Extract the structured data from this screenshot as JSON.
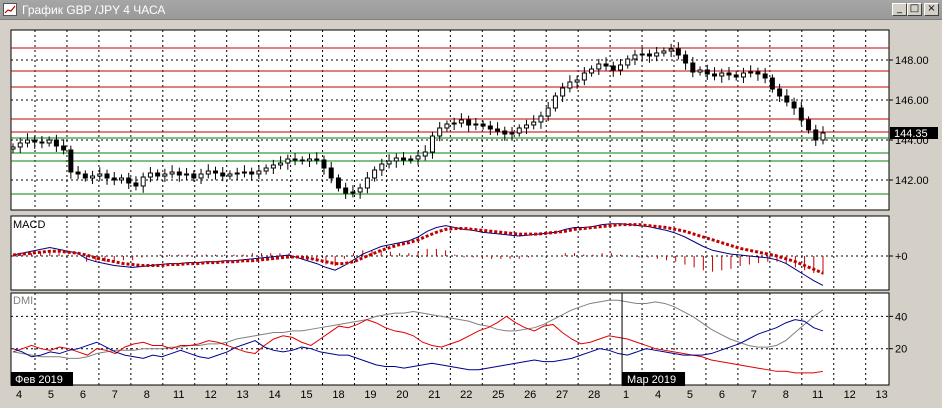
{
  "window": {
    "title": "График GBP /JPY  4 ЧАСА",
    "buttons": [
      {
        "name": "minimize-button",
        "glyph": "_"
      },
      {
        "name": "maximize-button",
        "glyph": "□"
      },
      {
        "name": "close-button",
        "glyph": "×"
      }
    ]
  },
  "chart_data": [
    {
      "type": "candlestick",
      "title": "График GBP /JPY  4 ЧАСА",
      "ylim": [
        140.5,
        149.5
      ],
      "y_ticks": [
        "148.00",
        "146.00",
        "144.00",
        "142.00"
      ],
      "current_price": "144.35",
      "x_labels": [
        "4",
        "5",
        "6",
        "7",
        "8",
        "11",
        "12",
        "13",
        "14",
        "15",
        "18",
        "19",
        "20",
        "21",
        "22",
        "25",
        "26",
        "27",
        "28",
        "1",
        "4",
        "5",
        "6",
        "7",
        "8",
        "11",
        "12",
        "13"
      ],
      "period_labels": [
        "Фев 2019",
        "Мар 2019"
      ],
      "resistance_levels": [
        148.6,
        147.45,
        146.65,
        145.05,
        144.4
      ],
      "support_levels": [
        144.1,
        143.35,
        142.95,
        141.3
      ],
      "closes": [
        143.65,
        143.85,
        144.0,
        143.9,
        143.85,
        144.0,
        143.7,
        143.5,
        142.4,
        142.3,
        142.1,
        142.2,
        142.3,
        142.1,
        142.0,
        142.1,
        141.85,
        141.7,
        142.15,
        142.35,
        142.2,
        142.3,
        142.4,
        142.25,
        142.3,
        142.1,
        142.3,
        142.45,
        142.35,
        142.2,
        142.3,
        142.35,
        142.4,
        142.3,
        142.45,
        142.6,
        142.75,
        142.85,
        143.05,
        143.0,
        142.95,
        143.05,
        143.0,
        142.6,
        142.1,
        141.6,
        141.35,
        141.4,
        141.6,
        142.1,
        142.5,
        142.8,
        142.95,
        143.1,
        143.0,
        143.05,
        143.2,
        143.4,
        144.2,
        144.6,
        144.8,
        144.85,
        145.0,
        144.75,
        144.8,
        144.7,
        144.55,
        144.45,
        144.3,
        144.35,
        144.6,
        144.75,
        144.9,
        145.2,
        145.6,
        146.2,
        146.6,
        146.9,
        147.0,
        147.35,
        147.55,
        147.8,
        147.7,
        147.5,
        147.75,
        148.05,
        148.25,
        148.3,
        148.2,
        148.35,
        148.45,
        148.55,
        148.25,
        147.85,
        147.4,
        147.5,
        147.3,
        147.2,
        147.35,
        147.25,
        147.15,
        147.35,
        147.4,
        147.3,
        147.1,
        146.55,
        146.2,
        145.9,
        145.6,
        145.0,
        144.5,
        144.0,
        144.35
      ],
      "macd": {
        "zero_label": "+0",
        "line": [
          1,
          3,
          5,
          7,
          9,
          7,
          5,
          3,
          -3,
          -6,
          -8,
          -10,
          -11,
          -12,
          -11,
          -10,
          -9,
          -8,
          -8,
          -7,
          -7,
          -6,
          -6,
          -5,
          -5,
          -4,
          -3,
          -2,
          -1,
          0,
          1,
          -2,
          -5,
          -8,
          -12,
          -15,
          -10,
          -4,
          2,
          6,
          10,
          12,
          14,
          16,
          20,
          26,
          30,
          32,
          30,
          28,
          27,
          25,
          24,
          23,
          22,
          21,
          22,
          23,
          24,
          25,
          28,
          30,
          30,
          31,
          33,
          34,
          34,
          33,
          32,
          31,
          29,
          27,
          24,
          20,
          15,
          10,
          6,
          4,
          2,
          1,
          0,
          -1,
          -2,
          -4,
          -8,
          -14,
          -20,
          -26,
          -31
        ],
        "signal": [
          1,
          2,
          3,
          4,
          5,
          5,
          4,
          3,
          1,
          -2,
          -4,
          -6,
          -8,
          -9,
          -10,
          -10,
          -10,
          -9,
          -9,
          -8,
          -8,
          -7,
          -7,
          -6,
          -6,
          -5,
          -5,
          -4,
          -3,
          -2,
          -1,
          -1,
          -2,
          -4,
          -6,
          -8,
          -8,
          -6,
          -2,
          2,
          6,
          9,
          12,
          14,
          17,
          21,
          25,
          28,
          29,
          29,
          28,
          27,
          26,
          25,
          24,
          23,
          23,
          23,
          24,
          25,
          26,
          28,
          29,
          30,
          31,
          32,
          33,
          33,
          33,
          32,
          31,
          30,
          28,
          26,
          23,
          20,
          17,
          14,
          11,
          8,
          6,
          4,
          2,
          0,
          -3,
          -6,
          -10,
          -14,
          -18
        ]
      },
      "dmi": {
        "y_ticks": [
          "40",
          "20"
        ],
        "adx": [
          18,
          17,
          16,
          15,
          15,
          15,
          14,
          14,
          15,
          17,
          18,
          19,
          19,
          19,
          20,
          20,
          20,
          21,
          21,
          22,
          22,
          23,
          23,
          24,
          26,
          27,
          28,
          29,
          30,
          30,
          31,
          31,
          32,
          33,
          34,
          35,
          36,
          37,
          38,
          40,
          41,
          42,
          42,
          43,
          42,
          41,
          40,
          39,
          38,
          37,
          35,
          34,
          32,
          31,
          31,
          32,
          33,
          35,
          38,
          41,
          44,
          46,
          48,
          49,
          50,
          50,
          49,
          48,
          48,
          49,
          48,
          46,
          43,
          40,
          36,
          32,
          29,
          26,
          24,
          22,
          21,
          21,
          22,
          25,
          30,
          35,
          40,
          44
        ],
        "plus_di": [
          18,
          20,
          22,
          20,
          19,
          21,
          20,
          18,
          16,
          20,
          19,
          17,
          21,
          23,
          24,
          22,
          22,
          20,
          22,
          22,
          23,
          25,
          24,
          22,
          20,
          18,
          17,
          22,
          26,
          28,
          27,
          24,
          22,
          26,
          30,
          34,
          33,
          35,
          38,
          36,
          33,
          31,
          30,
          28,
          24,
          22,
          21,
          23,
          25,
          28,
          31,
          33,
          36,
          40,
          36,
          33,
          31,
          34,
          35,
          30,
          26,
          23,
          24,
          26,
          28,
          27,
          26,
          24,
          22,
          20,
          19,
          18,
          17,
          16,
          15,
          13,
          12,
          11,
          10,
          9,
          8,
          7,
          6,
          6,
          5,
          5,
          5,
          6
        ],
        "minus_di": [
          20,
          18,
          15,
          16,
          18,
          17,
          19,
          20,
          22,
          24,
          21,
          18,
          16,
          15,
          14,
          16,
          15,
          17,
          19,
          17,
          15,
          14,
          16,
          18,
          21,
          23,
          25,
          21,
          19,
          18,
          19,
          21,
          20,
          18,
          17,
          16,
          16,
          14,
          12,
          10,
          9,
          9,
          8,
          9,
          10,
          11,
          10,
          9,
          8,
          7,
          7,
          8,
          9,
          10,
          11,
          12,
          13,
          12,
          12,
          13,
          14,
          16,
          18,
          20,
          19,
          17,
          16,
          18,
          20,
          19,
          18,
          17,
          16,
          16,
          16,
          17,
          19,
          21,
          23,
          26,
          29,
          31,
          33,
          36,
          38,
          37,
          33,
          31
        ]
      }
    }
  ]
}
